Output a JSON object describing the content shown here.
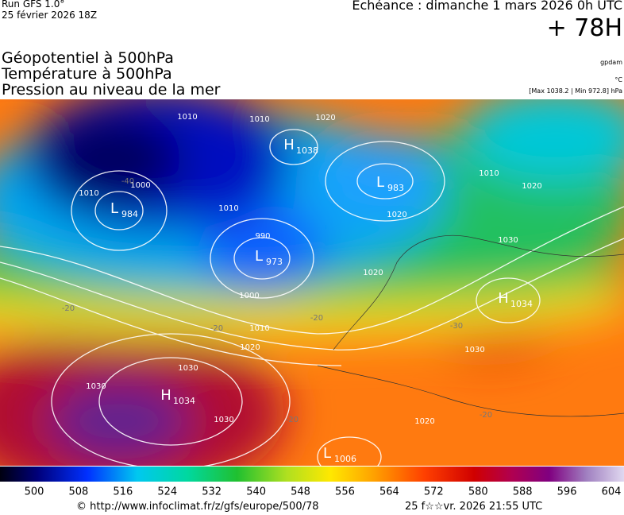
{
  "header": {
    "run": "Run GFS 1.0°",
    "date": "25 février 2026 18Z",
    "echeance": "Echéance : dimanche 1 mars 2026 0h UTC",
    "lead": "+ 78H"
  },
  "layers": [
    "Géopotentiel à 500hPa",
    "Température à 500hPa",
    "Pression au niveau de la mer"
  ],
  "units": [
    "gpdam",
    "°C",
    "[Max 1038.2 | Min 972.8] hPa"
  ],
  "centers": [
    {
      "type": "L",
      "value": 984
    },
    {
      "type": "H",
      "value": 1038
    },
    {
      "type": "L",
      "value": 983
    },
    {
      "type": "L",
      "value": 973
    },
    {
      "type": "H",
      "value": 1034
    },
    {
      "type": "H",
      "value": 1034
    },
    {
      "type": "L",
      "value": 1006
    }
  ],
  "isobar_labels": [
    1010,
    1010,
    1020,
    1000,
    1010,
    1010,
    990,
    1000,
    1010,
    1020,
    1030,
    1030,
    1030,
    1010,
    1020,
    1030,
    1020,
    1020,
    1020,
    1030
  ],
  "temperature_labels": [
    -40,
    -20,
    -20,
    -20,
    -30,
    -20,
    -20
  ],
  "colorbar": {
    "ticks": [
      500,
      508,
      516,
      524,
      532,
      540,
      548,
      556,
      564,
      572,
      580,
      588,
      596,
      604
    ]
  },
  "footer": {
    "credit": "© http://www.infoclimat.fr/z/gfs/europe/500/78",
    "timestamp": "25 f☆☆vr. 2026 21:55 UTC"
  }
}
